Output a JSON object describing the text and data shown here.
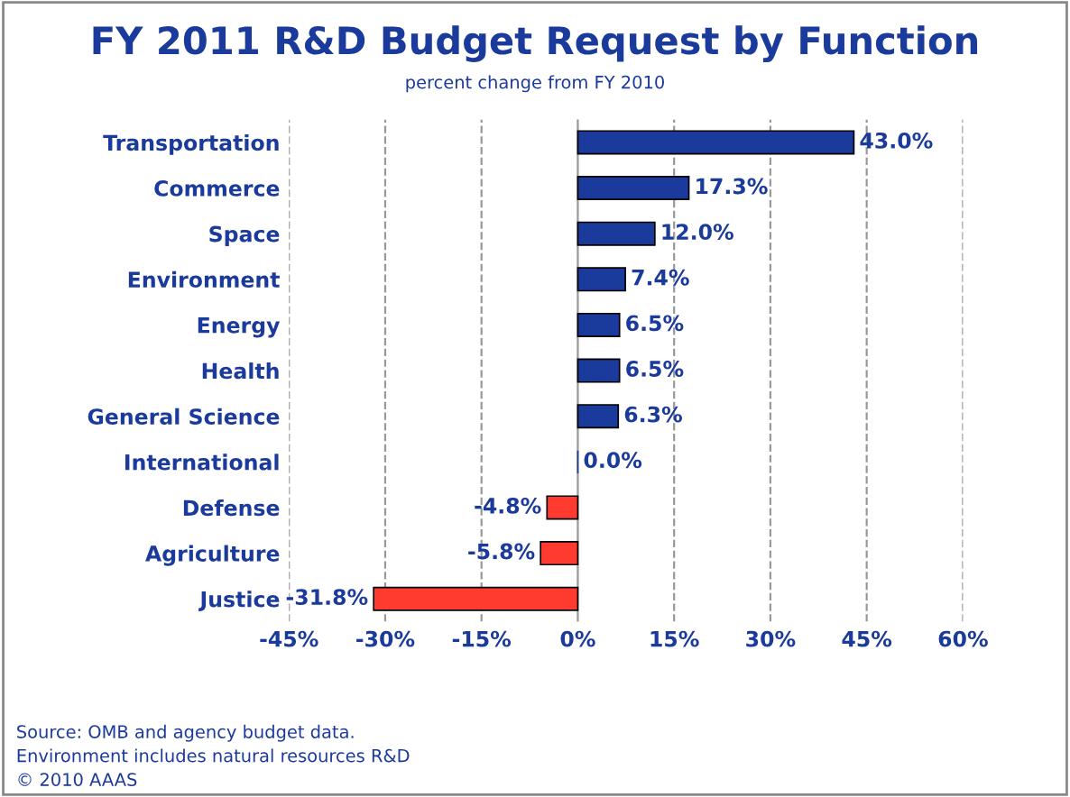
{
  "chart_data": {
    "type": "bar",
    "orientation": "horizontal",
    "title": "FY 2011 R&D Budget Request by Function",
    "subtitle": "percent change from FY 2010",
    "categories": [
      "Transportation",
      "Commerce",
      "Space",
      "Environment",
      "Energy",
      "Health",
      "General Science",
      "International",
      "Defense",
      "Agriculture",
      "Justice"
    ],
    "values": [
      43.0,
      17.3,
      12.0,
      7.4,
      6.5,
      6.5,
      6.3,
      0.0,
      -4.8,
      -5.8,
      -31.8
    ],
    "value_labels": [
      "43.0%",
      "17.3%",
      "12.0%",
      "7.4%",
      "6.5%",
      "6.5%",
      "6.3%",
      "0.0%",
      "-4.8%",
      "-5.8%",
      "-31.8%"
    ],
    "colors": [
      "#1a3a9c",
      "#1a3a9c",
      "#1a3a9c",
      "#1a3a9c",
      "#1a3a9c",
      "#1a3a9c",
      "#1a3a9c",
      "#1a3a9c",
      "#ff3b30",
      "#ff3b30",
      "#ff3b30"
    ],
    "xlim": [
      -45,
      60
    ],
    "xticks": [
      {
        "value": -45,
        "label": "-45%"
      },
      {
        "value": -30,
        "label": "-30%"
      },
      {
        "value": -15,
        "label": "-15%"
      },
      {
        "value": 0,
        "label": "0%"
      },
      {
        "value": 15,
        "label": "15%"
      },
      {
        "value": 30,
        "label": "30%"
      },
      {
        "value": 45,
        "label": "45%"
      },
      {
        "value": 60,
        "label": "60%"
      }
    ],
    "grid": "x",
    "annotations": [
      "Source: OMB and agency budget data.",
      "Environment includes natural resources R&D",
      "© 2010 AAAS"
    ]
  }
}
